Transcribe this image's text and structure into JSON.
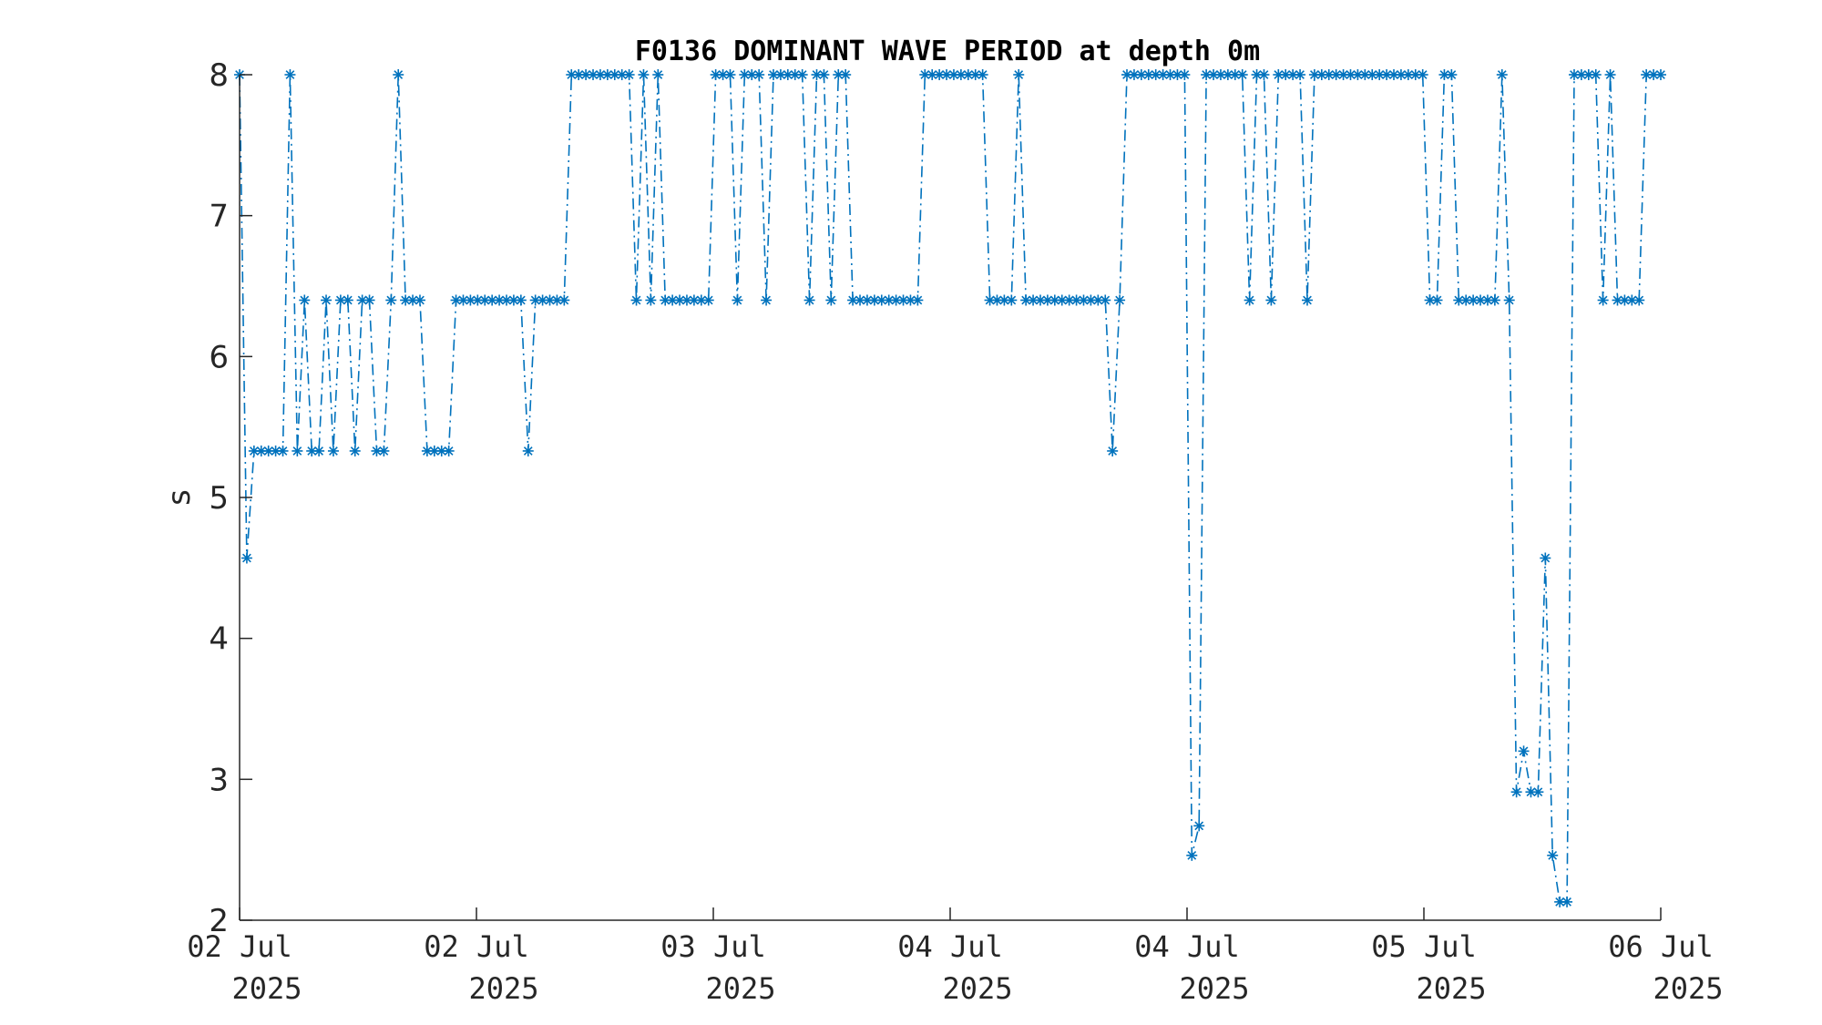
{
  "chart_data": {
    "type": "line",
    "title": "F0136 DOMINANT WAVE PERIOD at depth 0m",
    "xlabel": "",
    "ylabel": "s",
    "ylim": [
      2,
      8
    ],
    "y_ticks": [
      "2",
      "3",
      "4",
      "5",
      "6",
      "7",
      "8"
    ],
    "x_ticks": [
      {
        "day": "02 Jul",
        "year": "2025"
      },
      {
        "day": "02 Jul",
        "year": "2025"
      },
      {
        "day": "03 Jul",
        "year": "2025"
      },
      {
        "day": "04 Jul",
        "year": "2025"
      },
      {
        "day": "04 Jul",
        "year": "2025"
      },
      {
        "day": "05 Jul",
        "year": "2025"
      },
      {
        "day": "06 Jul",
        "year": "2025"
      }
    ],
    "grid": false,
    "marker": "asterisk",
    "line_style": "dash-dot",
    "color": "#0072BD",
    "series": [
      {
        "values": [
          8,
          4.57,
          5.33,
          5.33,
          5.33,
          5.33,
          5.33,
          8,
          5.33,
          6.4,
          5.33,
          5.33,
          6.4,
          5.33,
          6.4,
          6.4,
          5.33,
          6.4,
          6.4,
          5.33,
          5.33,
          6.4,
          8,
          6.4,
          6.4,
          6.4,
          5.33,
          5.33,
          5.33,
          5.33,
          6.4,
          6.4,
          6.4,
          6.4,
          6.4,
          6.4,
          6.4,
          6.4,
          6.4,
          6.4,
          5.33,
          6.4,
          6.4,
          6.4,
          6.4,
          6.4,
          8,
          8,
          8,
          8,
          8,
          8,
          8,
          8,
          8,
          6.4,
          8,
          6.4,
          8,
          6.4,
          6.4,
          6.4,
          6.4,
          6.4,
          6.4,
          6.4,
          8,
          8,
          8,
          6.4,
          8,
          8,
          8,
          6.4,
          8,
          8,
          8,
          8,
          8,
          6.4,
          8,
          8,
          6.4,
          8,
          8,
          6.4,
          6.4,
          6.4,
          6.4,
          6.4,
          6.4,
          6.4,
          6.4,
          6.4,
          6.4,
          8,
          8,
          8,
          8,
          8,
          8,
          8,
          8,
          8,
          6.4,
          6.4,
          6.4,
          6.4,
          8,
          6.4,
          6.4,
          6.4,
          6.4,
          6.4,
          6.4,
          6.4,
          6.4,
          6.4,
          6.4,
          6.4,
          6.4,
          5.33,
          6.4,
          8,
          8,
          8,
          8,
          8,
          8,
          8,
          8,
          8,
          2.46,
          2.67,
          8,
          8,
          8,
          8,
          8,
          8,
          6.4,
          8,
          8,
          6.4,
          8,
          8,
          8,
          8,
          6.4,
          8,
          8,
          8,
          8,
          8,
          8,
          8,
          8,
          8,
          8,
          8,
          8,
          8,
          8,
          8,
          8,
          6.4,
          6.4,
          8,
          8,
          6.4,
          6.4,
          6.4,
          6.4,
          6.4,
          6.4,
          8,
          6.4,
          2.91,
          3.2,
          2.91,
          2.91,
          4.57,
          2.46,
          2.13,
          2.13,
          8,
          8,
          8,
          8,
          6.4,
          8,
          6.4,
          6.4,
          6.4,
          6.4,
          8,
          8,
          8
        ]
      }
    ]
  }
}
